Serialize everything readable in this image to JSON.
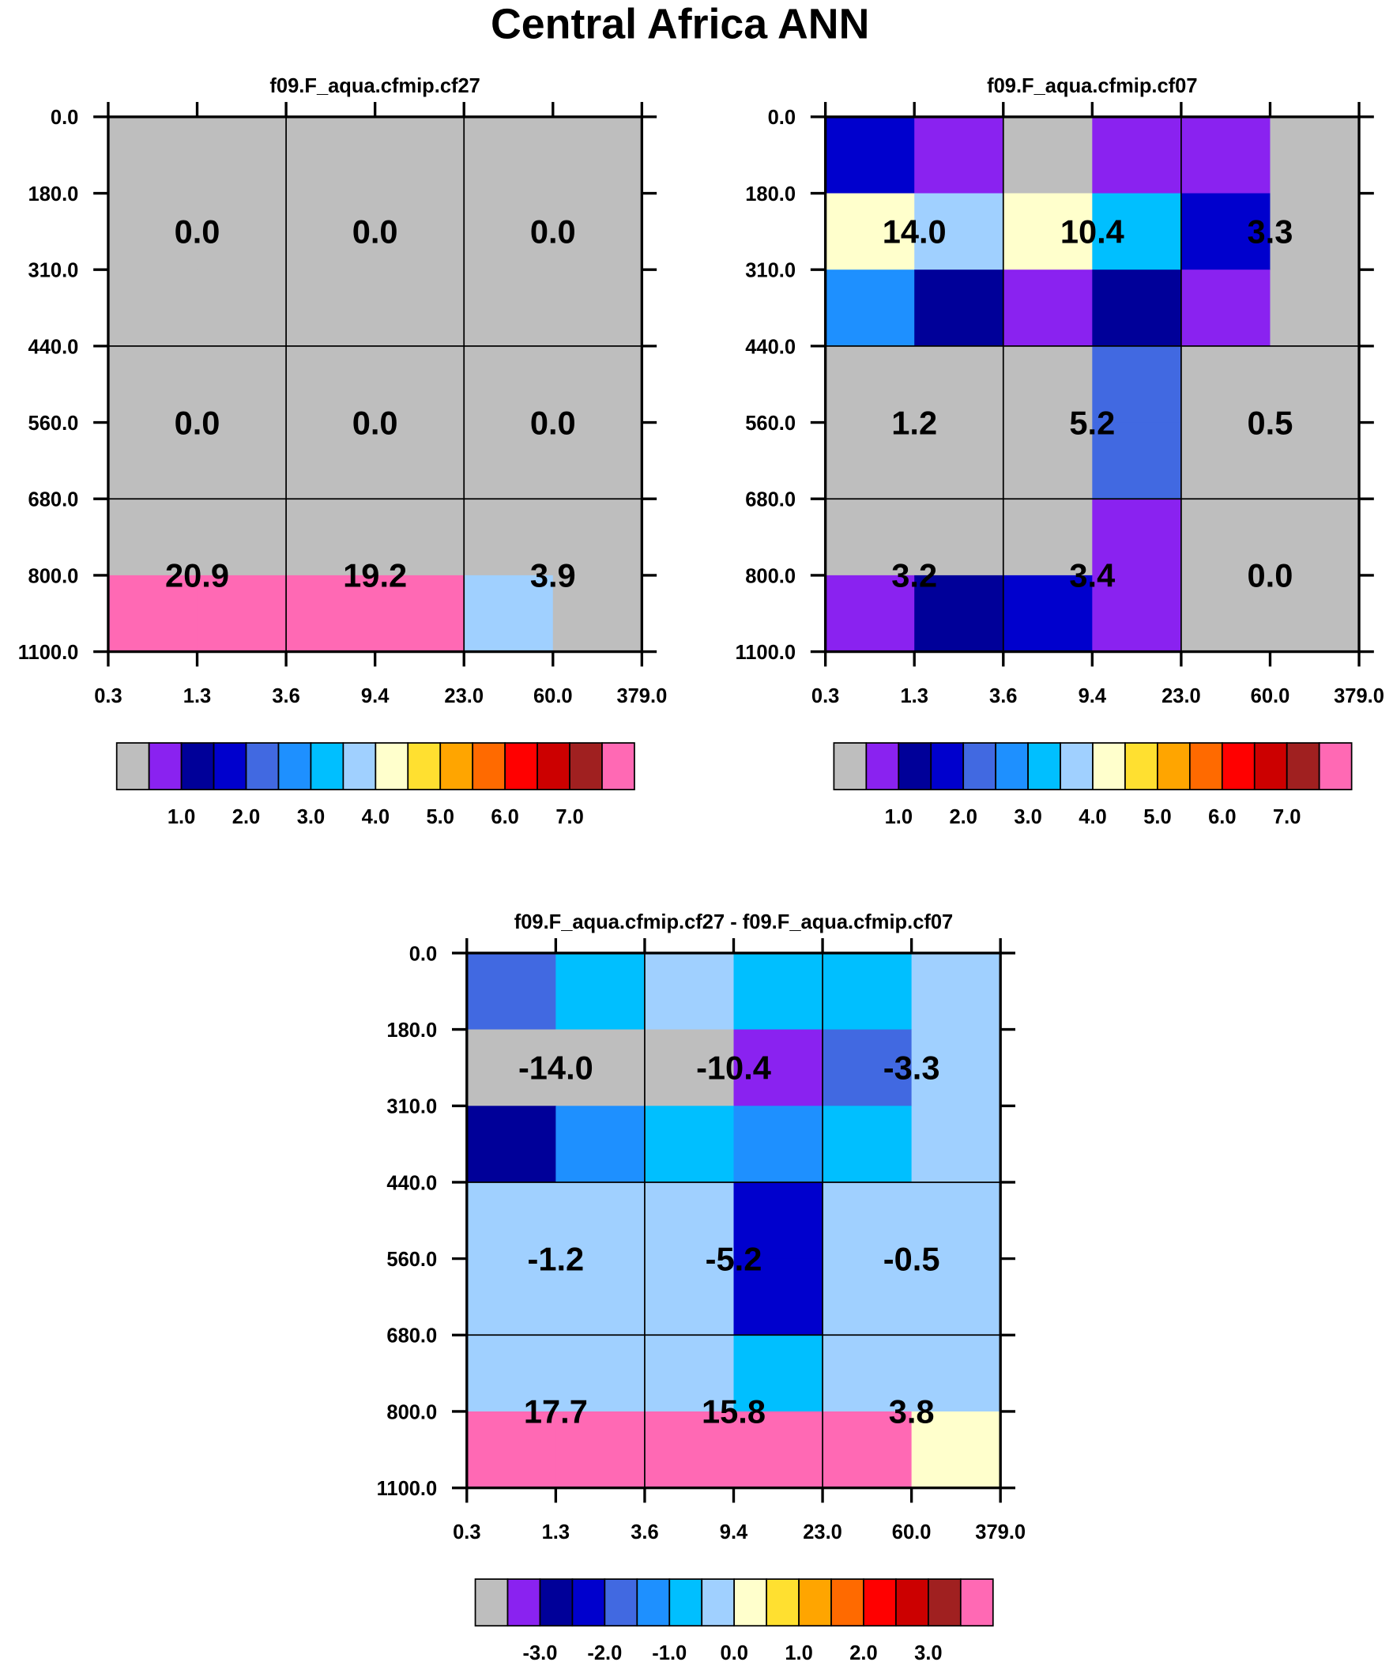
{
  "title": "Central Africa ANN",
  "colors": [
    "#BEBEBE",
    "#8A22F0",
    "#000099",
    "#0000CD",
    "#4169E1",
    "#1E90FF",
    "#00BFFF",
    "#A0D0FF",
    "#FFFFCC",
    "#FFE030",
    "#FFA500",
    "#FF6A00",
    "#FF0000",
    "#CC0000",
    "#A02020",
    "#FF69B4"
  ],
  "chart_data": [
    {
      "type": "heatmap",
      "title": "f09.F_aqua.cfmip.cf27",
      "x_ticks": [
        "0.3",
        "1.3",
        "3.6",
        "9.4",
        "23.0",
        "60.0",
        "379.0"
      ],
      "y_ticks": [
        "0.0",
        "180.0",
        "310.0",
        "440.0",
        "560.0",
        "680.0",
        "800.0",
        "1100.0"
      ],
      "cell_color_index": [
        [
          0,
          0,
          0,
          0,
          0,
          0
        ],
        [
          0,
          0,
          0,
          0,
          0,
          0
        ],
        [
          0,
          0,
          0,
          0,
          0,
          0
        ],
        [
          0,
          0,
          0,
          0,
          0,
          0
        ],
        [
          0,
          0,
          0,
          0,
          0,
          0
        ],
        [
          0,
          0,
          0,
          0,
          0,
          0
        ],
        [
          15,
          15,
          15,
          15,
          7,
          0
        ]
      ],
      "labels": [
        [
          "0.0",
          "0.0",
          "0.0"
        ],
        [
          "0.0",
          "0.0",
          "0.0"
        ],
        [
          "20.9",
          "19.2",
          "3.9"
        ]
      ],
      "colorbar_labels": [
        "1.0",
        "2.0",
        "3.0",
        "4.0",
        "5.0",
        "6.0",
        "7.0"
      ]
    },
    {
      "type": "heatmap",
      "title": "f09.F_aqua.cfmip.cf07",
      "x_ticks": [
        "0.3",
        "1.3",
        "3.6",
        "9.4",
        "23.0",
        "60.0",
        "379.0"
      ],
      "y_ticks": [
        "0.0",
        "180.0",
        "310.0",
        "440.0",
        "560.0",
        "680.0",
        "800.0",
        "1100.0"
      ],
      "cell_color_index": [
        [
          3,
          1,
          0,
          1,
          1,
          0
        ],
        [
          8,
          7,
          8,
          6,
          3,
          0
        ],
        [
          5,
          2,
          1,
          2,
          1,
          0
        ],
        [
          0,
          0,
          0,
          4,
          0,
          0
        ],
        [
          0,
          0,
          0,
          4,
          0,
          0
        ],
        [
          0,
          0,
          0,
          1,
          0,
          0
        ],
        [
          1,
          2,
          3,
          1,
          0,
          0
        ]
      ],
      "labels": [
        [
          "14.0",
          "10.4",
          "3.3"
        ],
        [
          "1.2",
          "5.2",
          "0.5"
        ],
        [
          "3.2",
          "3.4",
          "0.0"
        ]
      ],
      "colorbar_labels": [
        "1.0",
        "2.0",
        "3.0",
        "4.0",
        "5.0",
        "6.0",
        "7.0"
      ]
    },
    {
      "type": "heatmap",
      "title": "f09.F_aqua.cfmip.cf27 - f09.F_aqua.cfmip.cf07",
      "x_ticks": [
        "0.3",
        "1.3",
        "3.6",
        "9.4",
        "23.0",
        "60.0",
        "379.0"
      ],
      "y_ticks": [
        "0.0",
        "180.0",
        "310.0",
        "440.0",
        "560.0",
        "680.0",
        "800.0",
        "1100.0"
      ],
      "cell_color_index": [
        [
          4,
          6,
          7,
          6,
          6,
          7
        ],
        [
          0,
          0,
          0,
          1,
          4,
          7
        ],
        [
          2,
          5,
          6,
          5,
          6,
          7
        ],
        [
          7,
          7,
          7,
          3,
          7,
          7
        ],
        [
          7,
          7,
          7,
          3,
          7,
          7
        ],
        [
          7,
          7,
          7,
          6,
          7,
          7
        ],
        [
          15,
          15,
          15,
          15,
          15,
          8
        ]
      ],
      "labels": [
        [
          "-14.0",
          "-10.4",
          "-3.3"
        ],
        [
          "-1.2",
          "-5.2",
          "-0.5"
        ],
        [
          "17.7",
          "15.8",
          "3.8"
        ]
      ],
      "colorbar_labels": [
        "-3.0",
        "-2.0",
        "-1.0",
        "0.0",
        "1.0",
        "2.0",
        "3.0"
      ]
    }
  ]
}
